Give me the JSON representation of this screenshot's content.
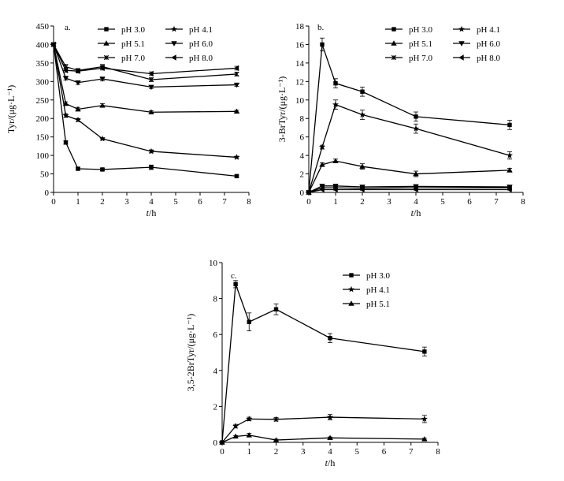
{
  "chart_data": [
    {
      "type": "line",
      "panel_label": "a.",
      "xlabel_italic": "t",
      "xlabel_rest": "/h",
      "ylabel": "Tyr/(μg·L⁻¹)",
      "xlim": [
        0,
        8
      ],
      "ylim": [
        0,
        450
      ],
      "x_ticks": [
        0,
        1,
        2,
        3,
        4,
        5,
        6,
        7,
        8
      ],
      "y_ticks": [
        0,
        50,
        100,
        150,
        200,
        250,
        300,
        350,
        400,
        450
      ],
      "x": [
        0,
        0.5,
        1,
        2,
        4,
        7.5
      ],
      "legend_position": "top-right",
      "grid": false,
      "series": [
        {
          "name": "pH 3.0",
          "marker": "square",
          "values": [
            400,
            135,
            64,
            62,
            68,
            44
          ],
          "errors": [
            0,
            5,
            4,
            3,
            6,
            3
          ]
        },
        {
          "name": "pH 4.1",
          "marker": "star",
          "values": [
            400,
            208,
            196,
            145,
            111,
            95
          ],
          "errors": [
            0,
            5,
            4,
            3,
            4,
            3
          ]
        },
        {
          "name": "pH 5.1",
          "marker": "triangle-up",
          "values": [
            400,
            240,
            225,
            235,
            217,
            219
          ],
          "errors": [
            0,
            5,
            5,
            5,
            4,
            3
          ]
        },
        {
          "name": "pH 6.0",
          "marker": "triangle-down",
          "values": [
            400,
            309,
            297,
            307,
            285,
            291
          ],
          "errors": [
            0,
            5,
            5,
            5,
            4,
            4
          ]
        },
        {
          "name": "pH 7.0",
          "marker": "x",
          "values": [
            400,
            340,
            330,
            340,
            305,
            320
          ],
          "errors": [
            0,
            6,
            5,
            6,
            5,
            5
          ]
        },
        {
          "name": "pH 8.0",
          "marker": "triangle-left",
          "values": [
            400,
            330,
            328,
            336,
            321,
            336
          ],
          "errors": [
            0,
            5,
            5,
            5,
            5,
            5
          ]
        }
      ]
    },
    {
      "type": "line",
      "panel_label": "b.",
      "xlabel_italic": "t",
      "xlabel_rest": "/h",
      "ylabel": "3-BrTyr/(μg·L⁻¹)",
      "xlim": [
        0,
        8
      ],
      "ylim": [
        0,
        18
      ],
      "x_ticks": [
        0,
        1,
        2,
        3,
        4,
        5,
        6,
        7,
        8
      ],
      "y_ticks": [
        0,
        2,
        4,
        6,
        8,
        10,
        12,
        14,
        16,
        18
      ],
      "x": [
        0,
        0.5,
        1,
        2,
        4,
        7.5
      ],
      "legend_position": "top-right",
      "grid": false,
      "series": [
        {
          "name": "pH 3.0",
          "marker": "square",
          "values": [
            0,
            16.0,
            11.8,
            10.9,
            8.2,
            7.3
          ],
          "errors": [
            0,
            0.7,
            0.5,
            0.5,
            0.5,
            0.5
          ]
        },
        {
          "name": "pH 4.1",
          "marker": "star",
          "values": [
            0,
            4.9,
            9.5,
            8.4,
            6.9,
            4.0
          ],
          "errors": [
            0,
            0.2,
            0.5,
            0.5,
            0.5,
            0.4
          ]
        },
        {
          "name": "pH 5.1",
          "marker": "triangle-up",
          "values": [
            0,
            3.0,
            3.4,
            2.8,
            2.0,
            2.4
          ],
          "errors": [
            0,
            0.2,
            0.2,
            0.3,
            0.3,
            0.2
          ]
        },
        {
          "name": "pH 6.0",
          "marker": "triangle-down",
          "values": [
            0,
            0.7,
            0.7,
            0.6,
            0.65,
            0.6
          ],
          "errors": [
            0,
            0.1,
            0.1,
            0.1,
            0.1,
            0.1
          ]
        },
        {
          "name": "pH 7.0",
          "marker": "x",
          "values": [
            0,
            0.5,
            0.5,
            0.45,
            0.5,
            0.5
          ],
          "errors": [
            0,
            0.1,
            0.1,
            0.1,
            0.1,
            0.1
          ]
        },
        {
          "name": "pH 8.0",
          "marker": "triangle-left",
          "values": [
            0,
            0.3,
            0.3,
            0.3,
            0.3,
            0.3
          ],
          "errors": [
            0,
            0.05,
            0.05,
            0.05,
            0.05,
            0.05
          ]
        }
      ]
    },
    {
      "type": "line",
      "panel_label": "c.",
      "xlabel_italic": "t",
      "xlabel_rest": "/h",
      "ylabel": "3,5-2BrTyr/(μg·L⁻¹)",
      "xlim": [
        0,
        8
      ],
      "ylim": [
        0,
        10
      ],
      "x_ticks": [
        0,
        1,
        2,
        3,
        4,
        5,
        6,
        7,
        8
      ],
      "y_ticks": [
        0,
        2,
        4,
        6,
        8,
        10
      ],
      "x": [
        0,
        0.5,
        1,
        2,
        4,
        7.5
      ],
      "legend_position": "top-right",
      "grid": false,
      "series": [
        {
          "name": "pH 3.0",
          "marker": "square",
          "values": [
            0,
            8.8,
            6.7,
            7.4,
            5.8,
            5.05
          ],
          "errors": [
            0,
            0.2,
            0.5,
            0.3,
            0.25,
            0.25
          ]
        },
        {
          "name": "pH 4.1",
          "marker": "star",
          "values": [
            0,
            0.9,
            1.3,
            1.28,
            1.4,
            1.3
          ],
          "errors": [
            0,
            0.1,
            0.1,
            0.1,
            0.15,
            0.2
          ]
        },
        {
          "name": "pH 5.1",
          "marker": "triangle-up",
          "values": [
            0,
            0.33,
            0.4,
            0.13,
            0.25,
            0.18
          ],
          "errors": [
            0,
            0.05,
            0.1,
            0.05,
            0.05,
            0.05
          ]
        }
      ]
    }
  ]
}
